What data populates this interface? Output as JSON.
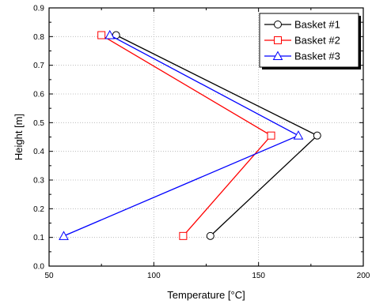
{
  "chart_data": {
    "type": "line",
    "xlabel": "Temperature [°C]",
    "ylabel": "Height [m]",
    "xlim": [
      50,
      200
    ],
    "ylim": [
      0.0,
      0.9
    ],
    "xticks": [
      50,
      100,
      150,
      200
    ],
    "yticks": [
      0.0,
      0.1,
      0.2,
      0.3,
      0.4,
      0.5,
      0.6,
      0.7,
      0.8,
      0.9
    ],
    "xtick_labels": [
      "50",
      "100",
      "150",
      "200"
    ],
    "ytick_labels": [
      "0.0",
      "0.1",
      "0.2",
      "0.3",
      "0.4",
      "0.5",
      "0.6",
      "0.7",
      "0.8",
      "0.9"
    ],
    "grid": true,
    "legend_position": "top-right",
    "series": [
      {
        "name": "Basket #1",
        "color": "#000000",
        "marker": "circle",
        "points": [
          {
            "x": 127,
            "y": 0.105
          },
          {
            "x": 178,
            "y": 0.455
          },
          {
            "x": 82,
            "y": 0.805
          }
        ]
      },
      {
        "name": "Basket #2",
        "color": "#ff0000",
        "marker": "square",
        "points": [
          {
            "x": 114,
            "y": 0.105
          },
          {
            "x": 156,
            "y": 0.455
          },
          {
            "x": 75,
            "y": 0.805
          }
        ]
      },
      {
        "name": "Basket #3",
        "color": "#0000ff",
        "marker": "triangle",
        "points": [
          {
            "x": 57,
            "y": 0.105
          },
          {
            "x": 169,
            "y": 0.455
          },
          {
            "x": 79,
            "y": 0.805
          }
        ]
      }
    ]
  }
}
